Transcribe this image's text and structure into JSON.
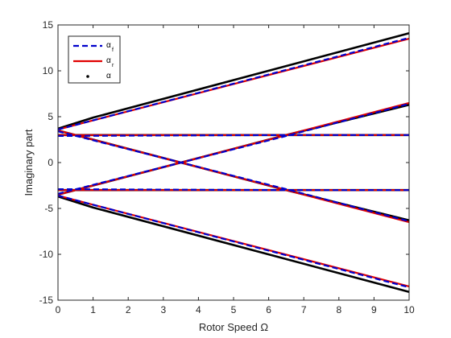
{
  "chart_data": {
    "type": "line",
    "xlabel": "Rotor Speed Ω",
    "ylabel": "Imaginary part",
    "xlim": [
      0,
      10
    ],
    "ylim": [
      -15,
      15
    ],
    "xticks": [
      "0",
      "1",
      "2",
      "3",
      "4",
      "5",
      "6",
      "7",
      "8",
      "9",
      "10"
    ],
    "yticks": [
      "15",
      "10",
      "5",
      "0",
      "-5",
      "-10",
      "-15"
    ],
    "grid": false,
    "legend_position": "top-left",
    "legend": [
      {
        "symbol": "α",
        "subscript": "f",
        "style": "dashed",
        "color": "#0000cc"
      },
      {
        "symbol": "α",
        "subscript": "r",
        "style": "solid",
        "color": "#e00000"
      },
      {
        "symbol": "α",
        "subscript": "",
        "style": "dots",
        "color": "#000000"
      }
    ],
    "x": [
      0,
      10
    ],
    "series": [
      {
        "style": "dashed",
        "color": "#0000cc",
        "lines": [
          {
            "x": [
              0,
              6.5,
              10
            ],
            "y": [
              2.9,
              3.0,
              3.0
            ]
          },
          {
            "x": [
              0,
              6.5,
              10
            ],
            "y": [
              -2.9,
              -3.0,
              -3.0
            ]
          },
          {
            "x": [
              0,
              1,
              10
            ],
            "y": [
              3.6,
              4.6,
              13.6
            ]
          },
          {
            "x": [
              0,
              1,
              10
            ],
            "y": [
              -3.6,
              -4.6,
              -13.6
            ]
          },
          {
            "x": [
              0,
              6.5,
              10
            ],
            "y": [
              3.4,
              -2.9,
              -6.4
            ]
          },
          {
            "x": [
              0,
              6.5,
              10
            ],
            "y": [
              -3.4,
              2.9,
              6.4
            ]
          }
        ]
      },
      {
        "style": "solid",
        "color": "#e00000",
        "lines": [
          {
            "x": [
              0,
              10
            ],
            "y": [
              3.0,
              3.0
            ]
          },
          {
            "x": [
              0,
              10
            ],
            "y": [
              -3.0,
              -3.0
            ]
          },
          {
            "x": [
              0,
              1,
              10
            ],
            "y": [
              3.6,
              4.6,
              13.5
            ]
          },
          {
            "x": [
              0,
              1,
              10
            ],
            "y": [
              -3.6,
              -4.6,
              -13.5
            ]
          },
          {
            "x": [
              0,
              6.5,
              10
            ],
            "y": [
              3.5,
              -3.0,
              -6.5
            ]
          },
          {
            "x": [
              0,
              6.5,
              10
            ],
            "y": [
              -3.5,
              3.0,
              6.5
            ]
          }
        ]
      },
      {
        "style": "dots",
        "color": "#000000",
        "lines": [
          {
            "x": [
              0,
              1,
              10
            ],
            "y": [
              3.7,
              4.9,
              14.1
            ]
          },
          {
            "x": [
              0,
              1,
              10
            ],
            "y": [
              -3.7,
              -4.9,
              -14.1
            ]
          },
          {
            "x": [
              0,
              1,
              10
            ],
            "y": [
              3.0,
              3.0,
              3.0
            ]
          },
          {
            "x": [
              0,
              1,
              10
            ],
            "y": [
              -3.0,
              -3.0,
              -3.0
            ]
          },
          {
            "x": [
              0,
              3.5,
              6.5,
              10
            ],
            "y": [
              3.5,
              0,
              -3.0,
              -6.3
            ]
          },
          {
            "x": [
              0,
              3.5,
              6.5,
              10
            ],
            "y": [
              -3.5,
              0,
              3.0,
              6.3
            ]
          }
        ]
      }
    ]
  }
}
